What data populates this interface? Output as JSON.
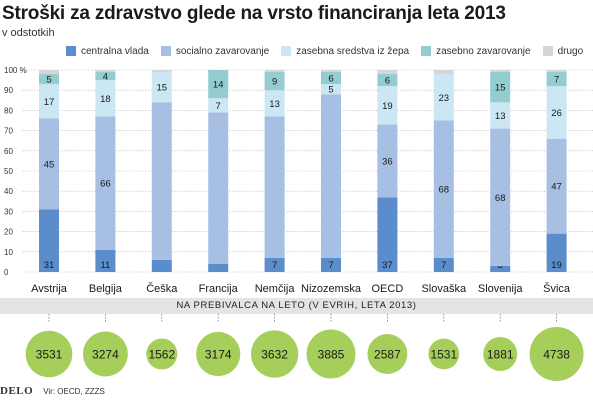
{
  "header": {
    "title": "Stroški za zdravstvo glede na vrsto financiranja leta 2013",
    "subtitle": "v odstotkih"
  },
  "colors": {
    "centralna_vlada": "#5b8ccc",
    "socialno_zavarovanje": "#a7bfe3",
    "zasebna_sredstva": "#cbe7f4",
    "zasebno_zavarovanje": "#93cdd0",
    "drugo": "#d6d6d6",
    "circle": "#a6ce5a",
    "band": "#e4e4e4"
  },
  "chart_data": [
    {
      "type": "bar",
      "stacked": true,
      "categories": [
        "Avstrija",
        "Belgija",
        "Češka",
        "Francija",
        "Nemčija",
        "Nizozemska",
        "OECD",
        "Slovaška",
        "Slovenija",
        "Švica"
      ],
      "series": [
        {
          "name": "centralna vlada",
          "values": [
            31,
            11,
            6,
            4,
            7,
            7,
            37,
            7,
            3,
            19
          ]
        },
        {
          "name": "socialno zavarovanje",
          "values": [
            45,
            66,
            78,
            75,
            70,
            81,
            36,
            68,
            68,
            47
          ]
        },
        {
          "name": "zasebna sredstva iz žepa",
          "values": [
            17,
            18,
            15,
            7,
            13,
            5,
            19,
            23,
            13,
            26
          ]
        },
        {
          "name": "zasebno zavarovanje",
          "values": [
            5,
            4,
            0,
            14,
            9,
            6,
            6,
            0,
            15,
            7
          ]
        },
        {
          "name": "drugo",
          "values": [
            2,
            1,
            1,
            0,
            1,
            1,
            2,
            2,
            1,
            1
          ]
        }
      ],
      "value_labels": [
        [
          "31",
          "45",
          "17",
          "5",
          ""
        ],
        [
          "11",
          "66",
          "18",
          "4",
          ""
        ],
        [
          "",
          "",
          "15",
          "",
          ""
        ],
        [
          "",
          "",
          "7",
          "14",
          ""
        ],
        [
          "7",
          "",
          "13",
          "9",
          ""
        ],
        [
          "7",
          "",
          "5",
          "6",
          ""
        ],
        [
          "37",
          "36",
          "19",
          "6",
          ""
        ],
        [
          "7",
          "68",
          "23",
          "",
          ""
        ],
        [
          "3",
          "68",
          "13",
          "15",
          ""
        ],
        [
          "19",
          "47",
          "26",
          "7",
          ""
        ]
      ],
      "y_ticks": [
        "0",
        "10",
        "20",
        "30",
        "40",
        "50",
        "60",
        "70",
        "80",
        "90",
        "100 %"
      ],
      "ylim": [
        0,
        100
      ],
      "legend_position": "top"
    },
    {
      "type": "bubble",
      "title": "NA PREBIVALCA NA LETO (V EVRIH, LETA 2013)",
      "categories": [
        "Avstrija",
        "Belgija",
        "Češka",
        "Francija",
        "Nemčija",
        "Nizozemska",
        "OECD",
        "Slovaška",
        "Slovenija",
        "Švica"
      ],
      "values": [
        3531,
        3274,
        1562,
        3174,
        3632,
        3885,
        2587,
        1531,
        1881,
        4738
      ]
    }
  ],
  "footer": {
    "logo": "DELO",
    "source": "Vir: OECD, ZZZS"
  }
}
